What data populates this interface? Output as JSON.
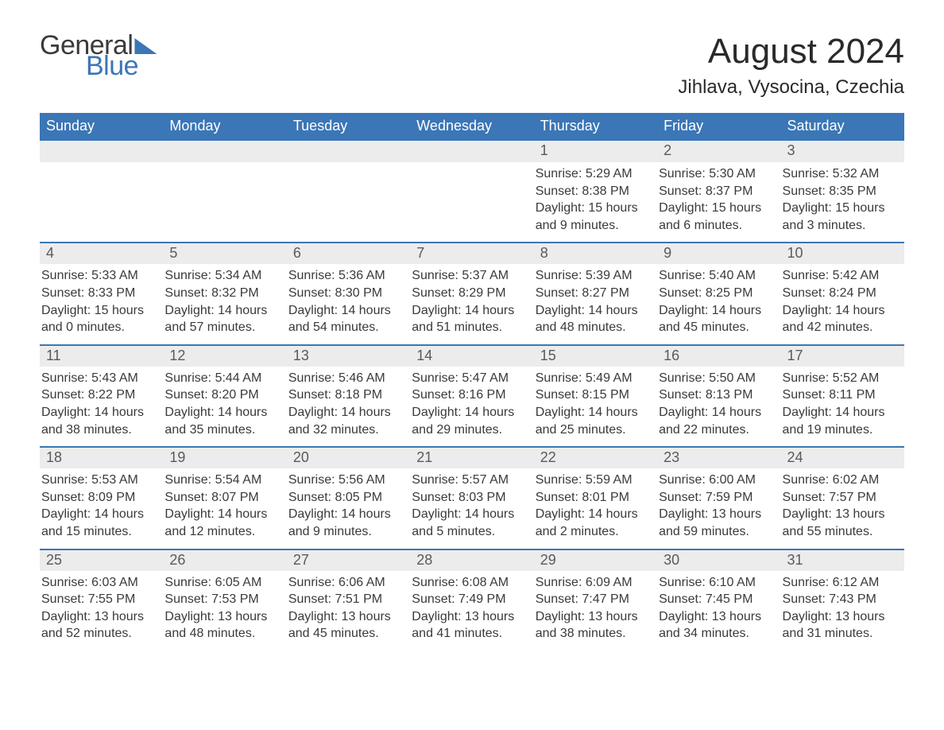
{
  "brand": {
    "word1": "General",
    "word2": "Blue",
    "accent_color": "#3b76b6"
  },
  "title": "August 2024",
  "location": "Jihlava, Vysocina, Czechia",
  "colors": {
    "header_bg": "#3b76b6",
    "header_text": "#ffffff",
    "daynum_bg": "#ececec",
    "border_top": "#3b76b6",
    "text": "#3a3a3a"
  },
  "day_names": [
    "Sunday",
    "Monday",
    "Tuesday",
    "Wednesday",
    "Thursday",
    "Friday",
    "Saturday"
  ],
  "weeks": [
    [
      null,
      null,
      null,
      null,
      {
        "n": "1",
        "sunrise": "5:29 AM",
        "sunset": "8:38 PM",
        "day_h": 15,
        "day_m": 9
      },
      {
        "n": "2",
        "sunrise": "5:30 AM",
        "sunset": "8:37 PM",
        "day_h": 15,
        "day_m": 6
      },
      {
        "n": "3",
        "sunrise": "5:32 AM",
        "sunset": "8:35 PM",
        "day_h": 15,
        "day_m": 3
      }
    ],
    [
      {
        "n": "4",
        "sunrise": "5:33 AM",
        "sunset": "8:33 PM",
        "day_h": 15,
        "day_m": 0
      },
      {
        "n": "5",
        "sunrise": "5:34 AM",
        "sunset": "8:32 PM",
        "day_h": 14,
        "day_m": 57
      },
      {
        "n": "6",
        "sunrise": "5:36 AM",
        "sunset": "8:30 PM",
        "day_h": 14,
        "day_m": 54
      },
      {
        "n": "7",
        "sunrise": "5:37 AM",
        "sunset": "8:29 PM",
        "day_h": 14,
        "day_m": 51
      },
      {
        "n": "8",
        "sunrise": "5:39 AM",
        "sunset": "8:27 PM",
        "day_h": 14,
        "day_m": 48
      },
      {
        "n": "9",
        "sunrise": "5:40 AM",
        "sunset": "8:25 PM",
        "day_h": 14,
        "day_m": 45
      },
      {
        "n": "10",
        "sunrise": "5:42 AM",
        "sunset": "8:24 PM",
        "day_h": 14,
        "day_m": 42
      }
    ],
    [
      {
        "n": "11",
        "sunrise": "5:43 AM",
        "sunset": "8:22 PM",
        "day_h": 14,
        "day_m": 38
      },
      {
        "n": "12",
        "sunrise": "5:44 AM",
        "sunset": "8:20 PM",
        "day_h": 14,
        "day_m": 35
      },
      {
        "n": "13",
        "sunrise": "5:46 AM",
        "sunset": "8:18 PM",
        "day_h": 14,
        "day_m": 32
      },
      {
        "n": "14",
        "sunrise": "5:47 AM",
        "sunset": "8:16 PM",
        "day_h": 14,
        "day_m": 29
      },
      {
        "n": "15",
        "sunrise": "5:49 AM",
        "sunset": "8:15 PM",
        "day_h": 14,
        "day_m": 25
      },
      {
        "n": "16",
        "sunrise": "5:50 AM",
        "sunset": "8:13 PM",
        "day_h": 14,
        "day_m": 22
      },
      {
        "n": "17",
        "sunrise": "5:52 AM",
        "sunset": "8:11 PM",
        "day_h": 14,
        "day_m": 19
      }
    ],
    [
      {
        "n": "18",
        "sunrise": "5:53 AM",
        "sunset": "8:09 PM",
        "day_h": 14,
        "day_m": 15
      },
      {
        "n": "19",
        "sunrise": "5:54 AM",
        "sunset": "8:07 PM",
        "day_h": 14,
        "day_m": 12
      },
      {
        "n": "20",
        "sunrise": "5:56 AM",
        "sunset": "8:05 PM",
        "day_h": 14,
        "day_m": 9
      },
      {
        "n": "21",
        "sunrise": "5:57 AM",
        "sunset": "8:03 PM",
        "day_h": 14,
        "day_m": 5
      },
      {
        "n": "22",
        "sunrise": "5:59 AM",
        "sunset": "8:01 PM",
        "day_h": 14,
        "day_m": 2
      },
      {
        "n": "23",
        "sunrise": "6:00 AM",
        "sunset": "7:59 PM",
        "day_h": 13,
        "day_m": 59
      },
      {
        "n": "24",
        "sunrise": "6:02 AM",
        "sunset": "7:57 PM",
        "day_h": 13,
        "day_m": 55
      }
    ],
    [
      {
        "n": "25",
        "sunrise": "6:03 AM",
        "sunset": "7:55 PM",
        "day_h": 13,
        "day_m": 52
      },
      {
        "n": "26",
        "sunrise": "6:05 AM",
        "sunset": "7:53 PM",
        "day_h": 13,
        "day_m": 48
      },
      {
        "n": "27",
        "sunrise": "6:06 AM",
        "sunset": "7:51 PM",
        "day_h": 13,
        "day_m": 45
      },
      {
        "n": "28",
        "sunrise": "6:08 AM",
        "sunset": "7:49 PM",
        "day_h": 13,
        "day_m": 41
      },
      {
        "n": "29",
        "sunrise": "6:09 AM",
        "sunset": "7:47 PM",
        "day_h": 13,
        "day_m": 38
      },
      {
        "n": "30",
        "sunrise": "6:10 AM",
        "sunset": "7:45 PM",
        "day_h": 13,
        "day_m": 34
      },
      {
        "n": "31",
        "sunrise": "6:12 AM",
        "sunset": "7:43 PM",
        "day_h": 13,
        "day_m": 31
      }
    ]
  ],
  "labels": {
    "sunrise": "Sunrise:",
    "sunset": "Sunset:",
    "daylight": "Daylight:",
    "hours": "hours",
    "and": "and",
    "minutes": "minutes."
  }
}
